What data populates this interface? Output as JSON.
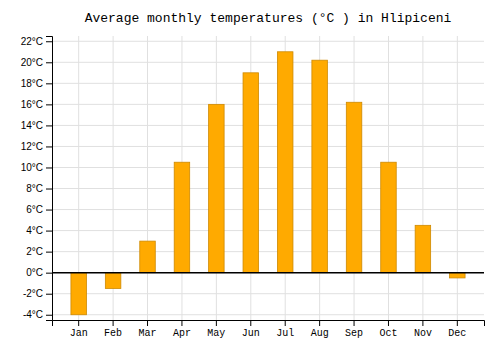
{
  "chart_data": {
    "type": "bar",
    "title": "Average monthly temperatures (°C ) in Hlipiceni",
    "categories": [
      "Jan",
      "Feb",
      "Mar",
      "Apr",
      "May",
      "Jun",
      "Jul",
      "Aug",
      "Sep",
      "Oct",
      "Nov",
      "Dec"
    ],
    "values": [
      -4.0,
      -1.5,
      3.0,
      10.5,
      16.0,
      19.0,
      21.0,
      20.2,
      16.2,
      10.5,
      4.5,
      -0.5
    ],
    "color": "#FFAA00",
    "ylim": [
      -4.5,
      22.5
    ],
    "yticks": [
      {
        "value": -4,
        "label": "-4°C"
      },
      {
        "value": -2,
        "label": "-2°C"
      },
      {
        "value": 0,
        "label": "0°C"
      },
      {
        "value": 2,
        "label": "2°C"
      },
      {
        "value": 4,
        "label": "4°C"
      },
      {
        "value": 6,
        "label": "6°C"
      },
      {
        "value": 8,
        "label": "8°C"
      },
      {
        "value": 10,
        "label": "10°C"
      },
      {
        "value": 12,
        "label": "12°C"
      },
      {
        "value": 14,
        "label": "14°C"
      },
      {
        "value": 16,
        "label": "16°C"
      },
      {
        "value": 18,
        "label": "18°C"
      },
      {
        "value": 20,
        "label": "20°C"
      },
      {
        "value": 22,
        "label": "22°C"
      }
    ],
    "grid": true
  }
}
